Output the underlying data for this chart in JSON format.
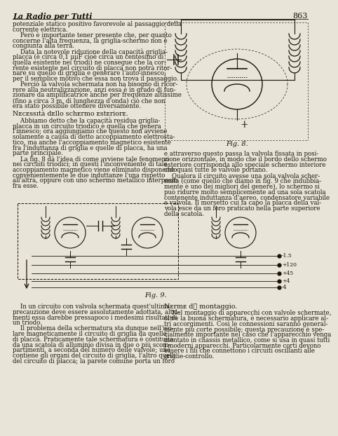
{
  "page_number": "863",
  "header_title": "La Radio per Tutti",
  "bg_color": "#e8e4d8",
  "text_color": "#1a1408",
  "fig8_label": "Fig. 8.",
  "fig9_label": "Fig. 9.",
  "col1_top_lines": [
    "potenziale statico positivo favorevole al passaggio della",
    "corrente elettrica.",
    "    Però è importante tener presente che, per quanto",
    "concerne l'alta frequenza, la griglia-schermo non è",
    "congiunta alla terra.",
    "    Data la notevole riduzione della capacità griglia-",
    "placca (è circa 0,1 μμF cioè circa un centesimo di",
    "quella esistente nei triodi) ne consegue che la cor-",
    "rente esistente nel circuito di placca non potrà ritor-",
    "nare su quello di griglia e generare l'auto-innesco,",
    "per il semplice motivo che essa non trova il passaggio.",
    "    Perciò la valvola schermata non ha bisogno di ricor-",
    "rere alla neutralizzazione, anzi essa è in grado di fun-",
    "zionare da amplificatrice anche per frequenze altissime",
    "(fino a circa 3 m. di lunghezza d'onda) ciò che non",
    "era stato possibile ottenere diversamente."
  ],
  "necessita_title": "Necessità dello schermo esteriore.",
  "col1_mid_lines": [
    "    Abbiamo detto che la capacità residua griglia-",
    "placca in un circuito triodico è quella che genera",
    "l'innesco; ora aggiungiamo che questo non avviene",
    "solamente a causa di detto accoppiamento elettrosta-",
    "tico, ma anche l'accoppiamento magnetico esistente",
    "fra l'induttanza di griglia e quelle di placca, ha una",
    "parte principale.",
    "    La fig. 8 dà l'idea di come avviene tale fenomeno",
    "nei circuiti triodici; in questi l'inconveniente di tale",
    "accoppiamento magnetico viene eliminato disponendo",
    "convenientemente le due induttanze l'una rispetto",
    "all'altra, oppure con uno schermo metallico interposto",
    "fra esse."
  ],
  "col2_mid_lines": [
    "e attraverso questo passa la valvola fissata in posi-",
    "zione orizzontale, in modo che il bordo dello schermo",
    "esteriore corrisponda allo speciale schermo interiore",
    "che quasi tutte le valvole portano.",
    "    Qualora il circuito avesse una sola valvola scher-",
    "mata (come quello che diamo in fig. 9 che indubbia-",
    "mente è uno dei migliori del genere), lo schermo si",
    "può ridurre molto semplicemente ad una sola scatola",
    "contenente induttanza d'aereo, condensatore variabile",
    "e valvola. Il morsetto cui fa capo la placca della val-",
    "vola esce da un foro praticato nella parte superiore",
    "della scatola."
  ],
  "norme_title": "Norme di montaggio.",
  "col1_bot_lines": [
    "    In un circuito con valvola schermata quest'ultima",
    "precauzione deve essere assolutamente adottata, altri-",
    "menti essa darebbe pressapoco i medesimi risultati di",
    "un triodo.",
    "    Il problema della schermatura sta dunque nell'iso-",
    "lare magneticamente il circuito di griglia da quello",
    "di placca. Praticamente tale schermatura è costituita",
    "da una scatola di alluminio divisa in due o più scom-",
    "partimenti, a seconda del numero delle valvole; uno",
    "contiene gli organi del circuito di griglia, l'altro quelli",
    "del circuito di placca; la parete comune porta un foro"
  ],
  "col2_bot_lines": [
    "    Nel montaggio di apparecchi con valvole schermate,",
    "oltre la buona schermatura, è necessario applicare al-",
    "tri accorgimenti. Così le connessioni saranno general-",
    "mente più corte possibile; questa precauzione è spe-",
    "cialmente importante nel caso che l'apparecchio venga",
    "montato in chassis metallico, come si usa in quasi tutti",
    "i moderni apparecchi. Particolarmente corti devono",
    "essere i fili che connettono i circuiti oscillanti alle",
    "griglie-controllo."
  ]
}
